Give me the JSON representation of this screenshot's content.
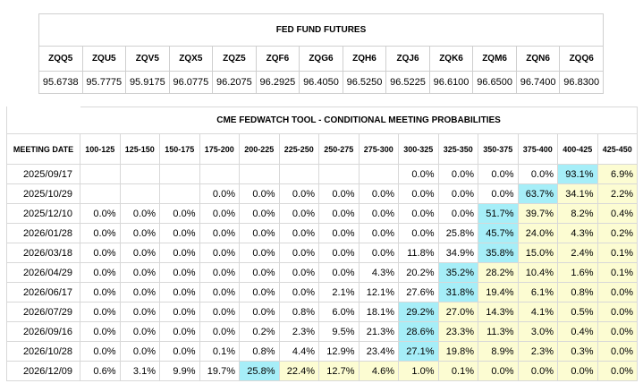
{
  "futures": {
    "title": "FED FUND FUTURES",
    "contracts": [
      "ZQQ5",
      "ZQU5",
      "ZQV5",
      "ZQX5",
      "ZQZ5",
      "ZQF6",
      "ZQG6",
      "ZQH6",
      "ZQJ6",
      "ZQK6",
      "ZQM6",
      "ZQN6",
      "ZQQ6"
    ],
    "prices": [
      "95.6738",
      "95.7775",
      "95.9175",
      "96.0775",
      "96.2075",
      "96.2925",
      "96.4050",
      "96.5250",
      "96.5225",
      "96.6100",
      "96.6500",
      "96.7400",
      "96.8300"
    ]
  },
  "fedwatch": {
    "title": "CME FEDWATCH TOOL - CONDITIONAL MEETING PROBABILITIES",
    "date_header": "MEETING DATE",
    "ranges": [
      "100-125",
      "125-150",
      "150-175",
      "175-200",
      "200-225",
      "225-250",
      "250-275",
      "275-300",
      "300-325",
      "325-350",
      "350-375",
      "375-400",
      "400-425",
      "425-450"
    ],
    "colors": {
      "highest": "#a6eef8",
      "at_or_above_current": "#fcfcd2"
    },
    "rows": [
      {
        "date": "2025/09/17",
        "cells": [
          "",
          "",
          "",
          "",
          "",
          "",
          "",
          "",
          "0.0%",
          "0.0%",
          "0.0%",
          "0.0%",
          "93.1%",
          "6.9%"
        ],
        "highlight": 12,
        "yellow_from": 12
      },
      {
        "date": "2025/10/29",
        "cells": [
          "",
          "",
          "",
          "0.0%",
          "0.0%",
          "0.0%",
          "0.0%",
          "0.0%",
          "0.0%",
          "0.0%",
          "0.0%",
          "63.7%",
          "34.1%",
          "2.2%"
        ],
        "highlight": 11,
        "yellow_from": 12
      },
      {
        "date": "2025/12/10",
        "cells": [
          "0.0%",
          "0.0%",
          "0.0%",
          "0.0%",
          "0.0%",
          "0.0%",
          "0.0%",
          "0.0%",
          "0.0%",
          "0.0%",
          "51.7%",
          "39.7%",
          "8.2%",
          "0.4%"
        ],
        "highlight": 10,
        "yellow_from": 11
      },
      {
        "date": "2026/01/28",
        "cells": [
          "0.0%",
          "0.0%",
          "0.0%",
          "0.0%",
          "0.0%",
          "0.0%",
          "0.0%",
          "0.0%",
          "0.0%",
          "25.8%",
          "45.7%",
          "24.0%",
          "4.3%",
          "0.2%"
        ],
        "highlight": 10,
        "yellow_from": 11
      },
      {
        "date": "2026/03/18",
        "cells": [
          "0.0%",
          "0.0%",
          "0.0%",
          "0.0%",
          "0.0%",
          "0.0%",
          "0.0%",
          "0.0%",
          "11.8%",
          "34.9%",
          "35.8%",
          "15.0%",
          "2.4%",
          "0.1%"
        ],
        "highlight": 10,
        "yellow_from": 11
      },
      {
        "date": "2026/04/29",
        "cells": [
          "0.0%",
          "0.0%",
          "0.0%",
          "0.0%",
          "0.0%",
          "0.0%",
          "0.0%",
          "4.3%",
          "20.2%",
          "35.2%",
          "28.2%",
          "10.4%",
          "1.6%",
          "0.1%"
        ],
        "highlight": 9,
        "yellow_from": 10
      },
      {
        "date": "2026/06/17",
        "cells": [
          "0.0%",
          "0.0%",
          "0.0%",
          "0.0%",
          "0.0%",
          "0.0%",
          "2.1%",
          "12.1%",
          "27.6%",
          "31.8%",
          "19.4%",
          "6.1%",
          "0.8%",
          "0.0%"
        ],
        "highlight": 9,
        "yellow_from": 10
      },
      {
        "date": "2026/07/29",
        "cells": [
          "0.0%",
          "0.0%",
          "0.0%",
          "0.0%",
          "0.0%",
          "0.8%",
          "6.0%",
          "18.1%",
          "29.2%",
          "27.0%",
          "14.3%",
          "4.1%",
          "0.5%",
          "0.0%"
        ],
        "highlight": 8,
        "yellow_from": 9
      },
      {
        "date": "2026/09/16",
        "cells": [
          "0.0%",
          "0.0%",
          "0.0%",
          "0.0%",
          "0.2%",
          "2.3%",
          "9.5%",
          "21.3%",
          "28.6%",
          "23.3%",
          "11.3%",
          "3.0%",
          "0.4%",
          "0.0%"
        ],
        "highlight": 8,
        "yellow_from": 9
      },
      {
        "date": "2026/10/28",
        "cells": [
          "0.0%",
          "0.0%",
          "0.0%",
          "0.1%",
          "0.8%",
          "4.4%",
          "12.9%",
          "23.4%",
          "27.1%",
          "19.8%",
          "8.9%",
          "2.3%",
          "0.3%",
          "0.0%"
        ],
        "highlight": 8,
        "yellow_from": 9
      },
      {
        "date": "2026/12/09",
        "cells": [
          "0.6%",
          "3.1%",
          "9.9%",
          "19.7%",
          "25.8%",
          "22.4%",
          "12.7%",
          "4.6%",
          "1.0%",
          "0.1%",
          "0.0%",
          "0.0%",
          "0.0%",
          "0.0%"
        ],
        "highlight": 4,
        "yellow_from": 5
      }
    ]
  }
}
